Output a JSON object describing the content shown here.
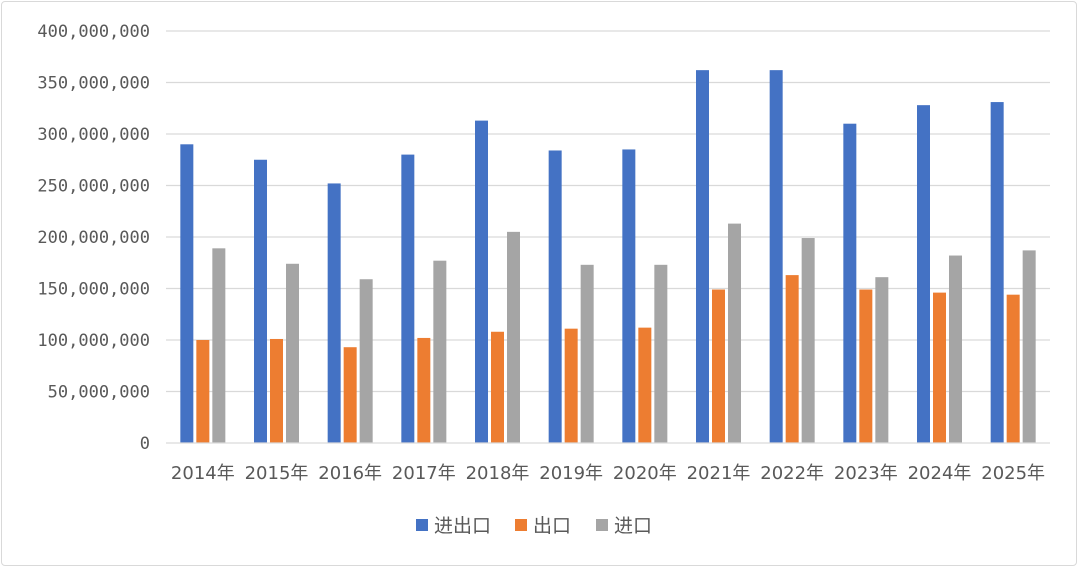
{
  "chart_data": {
    "type": "bar",
    "categories": [
      "2014年",
      "2015年",
      "2016年",
      "2017年",
      "2018年",
      "2019年",
      "2020年",
      "2021年",
      "2022年",
      "2023年",
      "2024年",
      "2025年"
    ],
    "series": [
      {
        "name": "进出口",
        "color": "#4472C4",
        "values": [
          290000000,
          275000000,
          252000000,
          280000000,
          313000000,
          284000000,
          285000000,
          362000000,
          362000000,
          310000000,
          328000000,
          331000000
        ]
      },
      {
        "name": "出口",
        "color": "#ED7D31",
        "values": [
          100000000,
          101000000,
          93000000,
          102000000,
          108000000,
          111000000,
          112000000,
          149000000,
          163000000,
          149000000,
          146000000,
          144000000
        ]
      },
      {
        "name": "进口",
        "color": "#A5A5A5",
        "values": [
          189000000,
          174000000,
          159000000,
          177000000,
          205000000,
          173000000,
          173000000,
          213000000,
          199000000,
          161000000,
          182000000,
          187000000
        ]
      }
    ],
    "ylim": [
      0,
      400000000
    ],
    "yticks": [
      0,
      50000000,
      100000000,
      150000000,
      200000000,
      250000000,
      300000000,
      350000000,
      400000000
    ],
    "ytick_labels": [
      "0",
      "50,000,000",
      "100,000,000",
      "150,000,000",
      "200,000,000",
      "250,000,000",
      "300,000,000",
      "350,000,000",
      "400,000,000"
    ],
    "grid": true,
    "legend_position": "bottom"
  }
}
